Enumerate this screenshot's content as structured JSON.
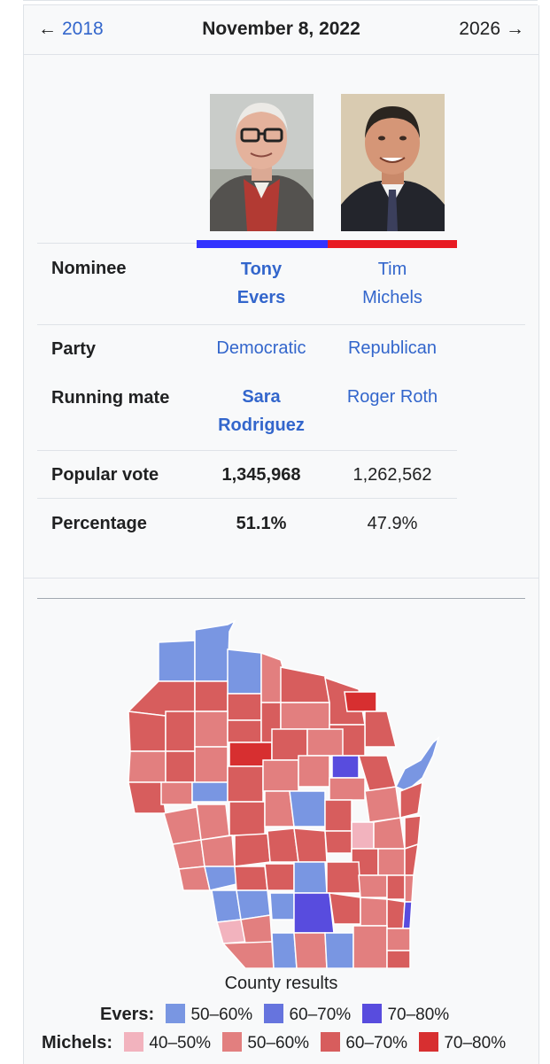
{
  "nav": {
    "prev_arrow": "←",
    "prev_year": "2018",
    "date": "November 8, 2022",
    "next_year": "2026",
    "next_arrow": "→"
  },
  "candidates": [
    {
      "color": "#3333ff",
      "name_line1": "Tony",
      "name_line2": "Evers",
      "party": "Democratic",
      "mate_line1": "Sara",
      "mate_line2": "Rodriguez",
      "popular_vote": "1,345,968",
      "percentage": "51.1%",
      "winner": true
    },
    {
      "color": "#e81b23",
      "name_line1": "Tim",
      "name_line2": "Michels",
      "party": "Republican",
      "mate_line1": "Roger Roth",
      "mate_line2": "",
      "popular_vote": "1,262,562",
      "percentage": "47.9%",
      "winner": false
    }
  ],
  "rows": {
    "nominee": "Nominee",
    "party": "Party",
    "running_mate": "Running mate",
    "popular_vote": "Popular vote",
    "percentage": "Percentage"
  },
  "map": {
    "caption": "County results",
    "evers_label": "Evers:",
    "michels_label": "Michels:",
    "evers_legend": [
      {
        "range": "50–60%",
        "color": "#7996e2"
      },
      {
        "range": "60–70%",
        "color": "#6674de"
      },
      {
        "range": "70–80%",
        "color": "#584cde"
      }
    ],
    "michels_legend": [
      {
        "range": "40–50%",
        "color": "#f2b3be"
      },
      {
        "range": "50–60%",
        "color": "#e27f7f"
      },
      {
        "range": "60–70%",
        "color": "#d75d5d"
      },
      {
        "range": "70–80%",
        "color": "#d72f30"
      }
    ]
  }
}
